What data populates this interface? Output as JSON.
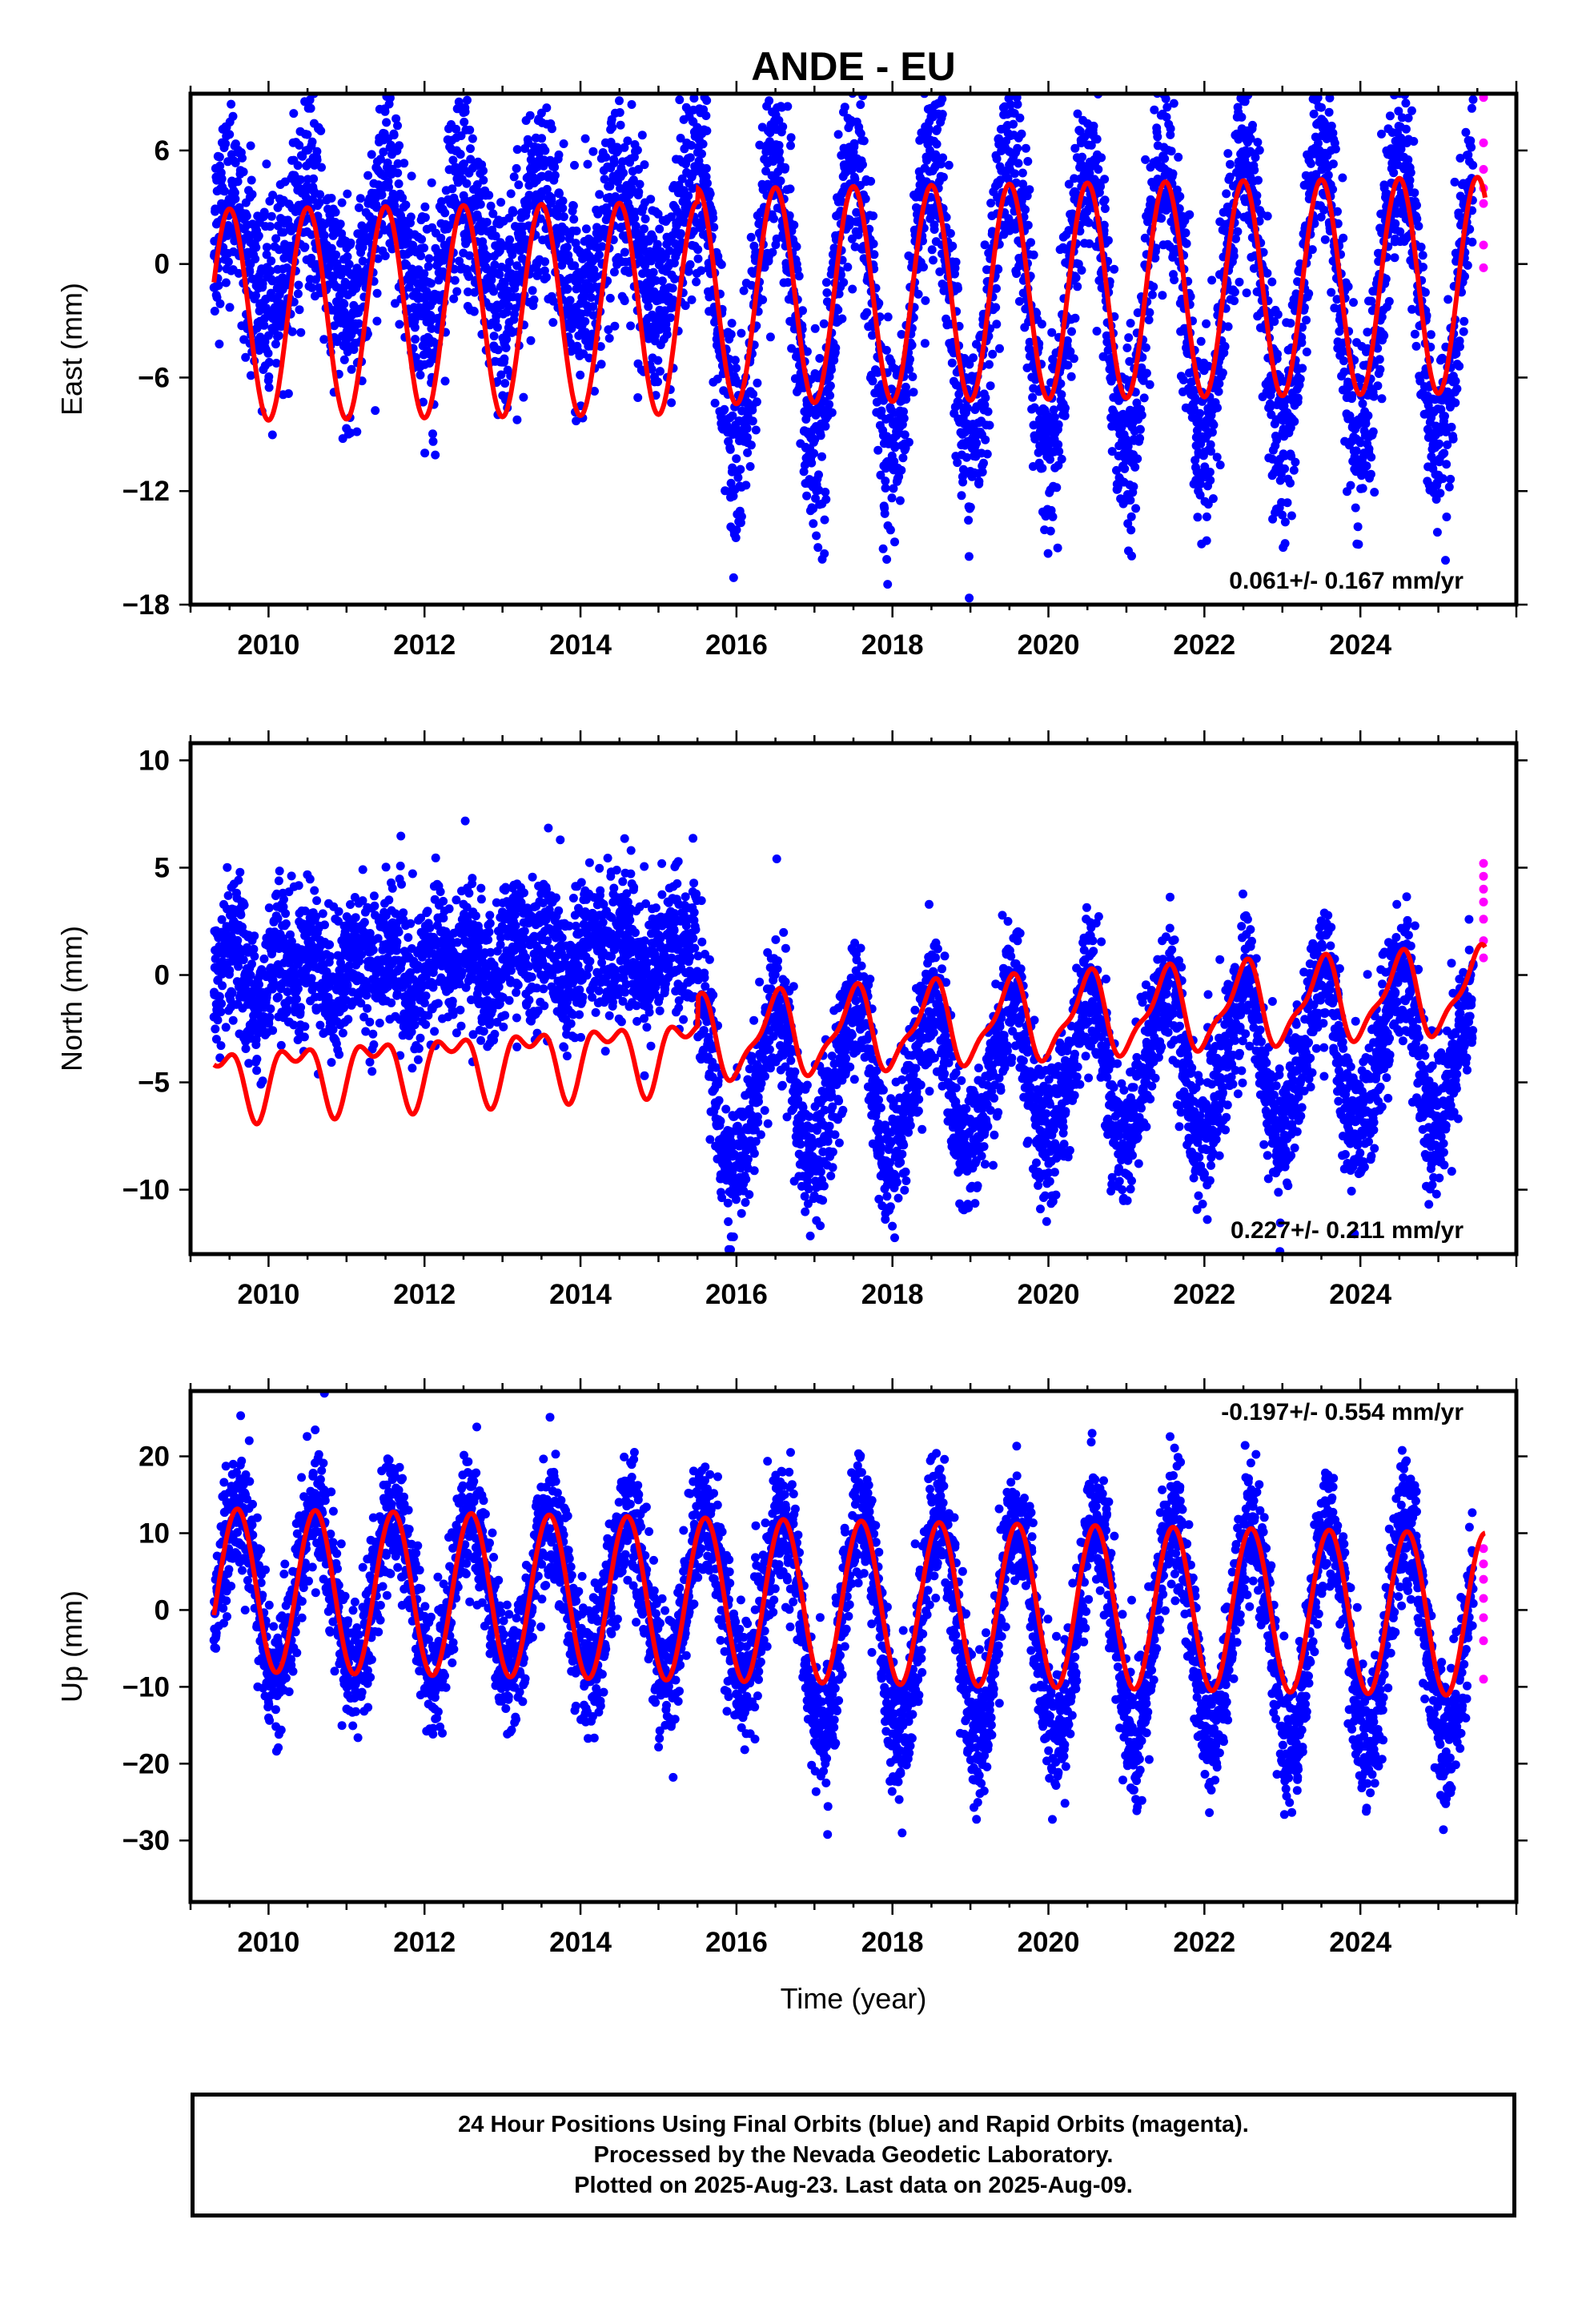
{
  "title": "ANDE - EU",
  "colors": {
    "final": "#0000ff",
    "rapid": "#ff00ff",
    "model": "#ff0000",
    "axis": "#000000"
  },
  "x_axis": {
    "label": "Time (year)",
    "ticks": [
      "2010",
      "2012",
      "2014",
      "2016",
      "2018",
      "2020",
      "2022",
      "2024"
    ],
    "range": [
      2009.0,
      2026.0
    ]
  },
  "caption": {
    "line1": "24 Hour Positions Using Final Orbits (blue) and Rapid Orbits (magenta).",
    "line2": "Processed by the Nevada Geodetic Laboratory.",
    "line3": "Plotted on 2025-Aug-23. Last data on 2025-Aug-09."
  },
  "chart_data": [
    {
      "type": "scatter",
      "component": "east",
      "ylabel": "East (mm)",
      "yticks": [
        "6",
        "0",
        "−6",
        "−12",
        "−18"
      ],
      "ylim": [
        -18,
        9
      ],
      "rate_label": "0.061+/- 0.167 mm/yr",
      "x_start": 2009.3,
      "x_end_final": 2025.45,
      "x_end": 2025.6,
      "model": {
        "segments": [
          {
            "from": 2009.3,
            "to": 2015.5,
            "offset": -2.2,
            "annual_amp": 5.6,
            "annual_peak": 0.5,
            "semi_amp": 0.0,
            "semi_phase": 0.0
          },
          {
            "from": 2015.5,
            "to": 2025.6,
            "offset": -1.6,
            "annual_amp": 5.7,
            "annual_peak": 0.5,
            "semi_amp": 0.0,
            "semi_phase": 0.0
          }
        ],
        "trend": 0.061
      },
      "scatter_noise": 2.6,
      "offset_points": [
        {
          "from": 2009.3,
          "to": 2015.5,
          "shift": 3.2,
          "amp_scale": 0.55
        },
        {
          "from": 2015.5,
          "to": 2025.6,
          "shift": -0.5,
          "amp_scale": 1.35
        }
      ],
      "rapid_values": [
        8.8,
        6.4,
        5.0,
        4.0,
        3.2,
        1.0,
        -0.2
      ]
    },
    {
      "type": "scatter",
      "component": "north",
      "ylabel": "North (mm)",
      "yticks": [
        "10",
        "5",
        "0",
        "−5",
        "−10"
      ],
      "ylim": [
        -13,
        10.8
      ],
      "rate_label": "0.227+/- 0.211 mm/yr",
      "x_start": 2009.3,
      "x_end_final": 2025.45,
      "x_end": 2025.6,
      "model": {
        "segments": [
          {
            "from": 2009.3,
            "to": 2015.5,
            "offset": -3.0,
            "annual_amp": 1.4,
            "annual_peak": 0.35,
            "semi_amp": 0.8,
            "semi_phase": 0.1
          },
          {
            "from": 2015.5,
            "to": 2025.6,
            "offset": -2.6,
            "annual_amp": 1.8,
            "annual_peak": 0.5,
            "semi_amp": 0.6,
            "semi_phase": 0.1
          }
        ],
        "trend": 0.227
      },
      "scatter_noise": 1.6,
      "offset_points": [
        {
          "from": 2009.3,
          "to": 2015.5,
          "shift": 4.8,
          "amp_scale": 0.5
        },
        {
          "from": 2015.5,
          "to": 2025.6,
          "shift": -2.5,
          "amp_scale": 2.0
        }
      ],
      "rapid_values": [
        5.2,
        4.6,
        4.0,
        3.4,
        2.6,
        1.6,
        0.8
      ]
    },
    {
      "type": "scatter",
      "component": "up",
      "ylabel": "Up (mm)",
      "yticks": [
        "20",
        "10",
        "0",
        "−10",
        "−20",
        "−30"
      ],
      "ylim": [
        -38,
        28.5
      ],
      "rate_label": "-0.197+/- 0.554 mm/yr",
      "x_start": 2009.3,
      "x_end_final": 2025.45,
      "x_end": 2025.6,
      "model": {
        "segments": [
          {
            "from": 2009.3,
            "to": 2025.6,
            "offset": 1.0,
            "annual_amp": 10.6,
            "annual_peak": 0.6,
            "semi_amp": 0.0,
            "semi_phase": 0.0
          }
        ],
        "trend": -0.197
      },
      "scatter_noise": 4.2,
      "offset_points": [
        {
          "from": 2009.3,
          "to": 2016.5,
          "shift": 0.0,
          "amp_scale": 1.0
        },
        {
          "from": 2016.5,
          "to": 2025.6,
          "shift": -3.0,
          "amp_scale": 1.35
        }
      ],
      "rapid_values": [
        8.0,
        6.0,
        4.0,
        1.5,
        -1.0,
        -4.0,
        -9.0
      ]
    }
  ]
}
